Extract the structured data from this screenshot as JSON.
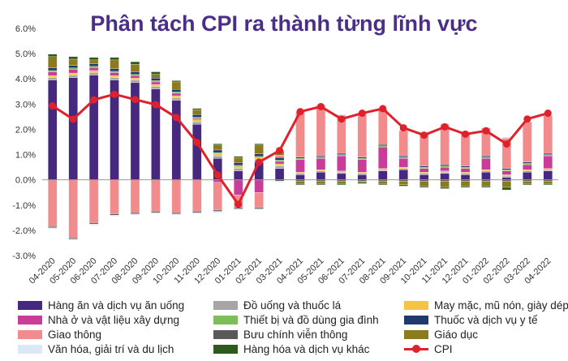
{
  "chart_data": {
    "type": "bar",
    "subtype": "stacked-bar-with-line",
    "title": "Phân tách CPI ra thành từng lĩnh vực",
    "xlabel": "",
    "ylabel": "",
    "ylim": [
      -3.0,
      6.0
    ],
    "yticks": [
      "6.0%",
      "5.0%",
      "4.0%",
      "3.0%",
      "2.0%",
      "1.0%",
      "0.0%",
      "-1.0%",
      "-2.0%",
      "-3.0%"
    ],
    "ytick_values": [
      6,
      5,
      4,
      3,
      2,
      1,
      0,
      -1,
      -2,
      -3
    ],
    "grid": false,
    "legend_position": "bottom",
    "categories": [
      "04-2020",
      "05-2020",
      "06-2020",
      "07-2020",
      "08-2020",
      "09-2020",
      "10-2020",
      "11-2020",
      "12-2020",
      "01-2021",
      "02-2021",
      "03-2021",
      "04-2021",
      "05-2021",
      "06-2021",
      "07-2021",
      "08-2021",
      "09-2021",
      "10-2021",
      "11-2021",
      "12-2021",
      "01-2022",
      "02-2022",
      "03-2022",
      "04-2022"
    ],
    "series": [
      {
        "name": "Hàng ăn và dịch vụ ăn uống",
        "color": "#46287f",
        "values": [
          3.95,
          4.05,
          4.15,
          3.95,
          3.85,
          3.6,
          3.15,
          2.2,
          0.85,
          0.35,
          0.7,
          0.45,
          0.2,
          0.3,
          0.25,
          0.2,
          0.35,
          0.4,
          0.2,
          0.25,
          0.2,
          0.3,
          0.1,
          0.3,
          0.35
        ]
      },
      {
        "name": "Đồ uống và thuốc lá",
        "color": "#a6a6a6",
        "values": [
          0.1,
          0.1,
          0.1,
          0.1,
          0.1,
          0.1,
          0.1,
          0.1,
          0.1,
          0.1,
          0.1,
          0.1,
          0.05,
          0.05,
          0.05,
          0.05,
          0.05,
          0.05,
          0.05,
          0.05,
          0.05,
          0.05,
          0.05,
          0.05,
          0.05
        ]
      },
      {
        "name": "May mặc, mũ nón, giày dép",
        "color": "#f6c343",
        "values": [
          0.08,
          0.08,
          0.08,
          0.08,
          0.08,
          0.08,
          0.08,
          0.08,
          0.08,
          0.08,
          0.08,
          0.08,
          0.05,
          0.05,
          0.05,
          0.05,
          0.05,
          0.05,
          0.05,
          0.05,
          0.05,
          0.05,
          0.05,
          0.05,
          0.05
        ]
      },
      {
        "name": "Nhà ở và vật liệu xây dựng",
        "color": "#c73d97",
        "values": [
          0.15,
          0.15,
          0.12,
          0.12,
          0.1,
          0.1,
          0.1,
          0.05,
          -0.1,
          -0.6,
          -0.5,
          0.1,
          0.5,
          0.45,
          0.6,
          0.5,
          0.85,
          0.35,
          0.15,
          0.15,
          0.15,
          0.45,
          0.15,
          0.2,
          0.5
        ]
      },
      {
        "name": "Thiết bị và đồ dùng gia đình",
        "color": "#7cbf58",
        "values": [
          0.05,
          0.05,
          0.05,
          0.05,
          0.05,
          0.05,
          0.05,
          0.05,
          0.05,
          0.05,
          0.05,
          0.05,
          0.05,
          0.05,
          0.05,
          0.05,
          0.05,
          0.05,
          0.05,
          0.05,
          0.05,
          0.05,
          0.05,
          0.05,
          0.05
        ]
      },
      {
        "name": "Thuốc và dịch vụ y tế",
        "color": "#1f3a6b",
        "values": [
          0.1,
          0.1,
          0.1,
          0.1,
          0.1,
          0.1,
          0.1,
          0.1,
          0.1,
          0.1,
          0.1,
          0.1,
          0.05,
          0.05,
          0.05,
          0.05,
          0.05,
          0.05,
          0.05,
          0.05,
          0.05,
          0.05,
          0.05,
          0.05,
          0.05
        ]
      },
      {
        "name": "Giao thông",
        "color": "#f28b8b",
        "values": [
          -1.85,
          -2.3,
          -1.7,
          -1.35,
          -1.3,
          -1.25,
          -1.3,
          -1.25,
          -1.1,
          -0.5,
          -0.6,
          0.1,
          1.8,
          2.0,
          1.5,
          1.7,
          1.4,
          1.0,
          1.3,
          1.6,
          1.3,
          1.1,
          1.2,
          1.6,
          1.5
        ]
      },
      {
        "name": "Bưu chính viễn thông",
        "color": "#595959",
        "values": [
          -0.05,
          -0.05,
          -0.05,
          -0.05,
          -0.05,
          -0.05,
          -0.05,
          -0.05,
          -0.05,
          -0.05,
          -0.05,
          -0.05,
          -0.05,
          -0.05,
          -0.05,
          -0.05,
          -0.05,
          -0.05,
          -0.05,
          -0.05,
          -0.05,
          -0.05,
          -0.05,
          -0.05,
          -0.05
        ]
      },
      {
        "name": "Giáo dục",
        "color": "#8c7a1e",
        "values": [
          0.45,
          0.25,
          0.15,
          0.35,
          0.3,
          0.15,
          0.3,
          0.2,
          0.2,
          0.2,
          0.35,
          0.1,
          -0.1,
          -0.1,
          -0.1,
          -0.05,
          -0.1,
          -0.15,
          -0.2,
          -0.25,
          -0.2,
          -0.2,
          -0.25,
          -0.1,
          -0.1
        ]
      },
      {
        "name": "Văn hóa, giải trí và du lịch",
        "color": "#dbe8f7",
        "values": [
          -0.05,
          -0.05,
          -0.05,
          -0.05,
          -0.05,
          -0.05,
          -0.05,
          -0.05,
          -0.05,
          -0.05,
          -0.05,
          -0.05,
          0.05,
          0.05,
          0.05,
          0.05,
          0.05,
          0.05,
          0.05,
          0.05,
          0.05,
          0.05,
          0.05,
          0.05,
          0.05
        ]
      },
      {
        "name": "Hàng hóa và dịch vụ khác",
        "color": "#2e5a1c",
        "values": [
          0.1,
          0.1,
          0.1,
          0.1,
          0.1,
          0.1,
          0.05,
          0.05,
          0.05,
          0.05,
          0.05,
          0.05,
          -0.05,
          -0.05,
          -0.05,
          -0.05,
          -0.05,
          -0.05,
          -0.05,
          -0.05,
          -0.05,
          -0.05,
          -0.1,
          -0.05,
          -0.05
        ]
      }
    ],
    "line": {
      "name": "CPI",
      "color": "#e0202a",
      "values": [
        2.93,
        2.4,
        3.17,
        3.39,
        3.18,
        2.98,
        2.47,
        1.48,
        0.19,
        -0.97,
        0.7,
        1.16,
        2.7,
        2.9,
        2.41,
        2.64,
        2.82,
        2.06,
        1.77,
        2.1,
        1.81,
        1.94,
        1.42,
        2.41,
        2.64
      ]
    }
  }
}
